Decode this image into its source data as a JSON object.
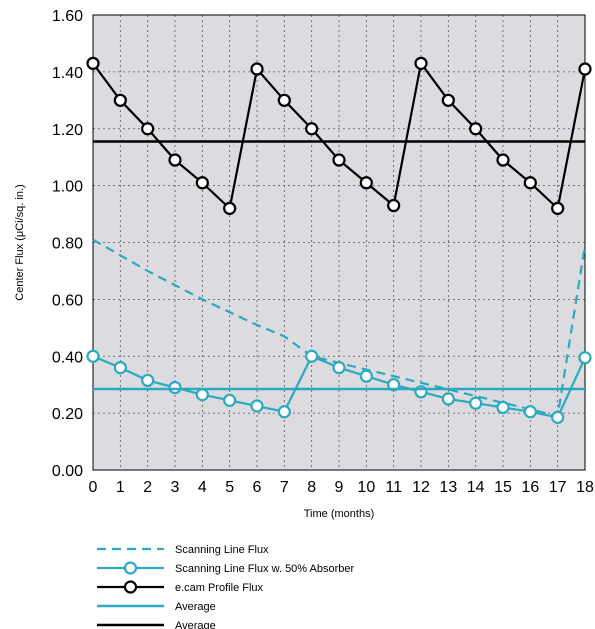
{
  "chart_data": {
    "type": "line",
    "xlabel": "Time (months)",
    "ylabel": "Center Flux (μCi/sq. in.)",
    "xlim": [
      0,
      18
    ],
    "ylim": [
      0,
      1.6
    ],
    "x_ticks": [
      0,
      1,
      2,
      3,
      4,
      5,
      6,
      7,
      8,
      9,
      10,
      11,
      12,
      13,
      14,
      15,
      16,
      17,
      18
    ],
    "x_tick_labels": [
      "0",
      "1",
      "2",
      "3",
      "4",
      "5",
      "6",
      "7",
      "8",
      "9",
      "10",
      "11",
      "12",
      "13",
      "14",
      "15",
      "16",
      "17",
      "18"
    ],
    "y_ticks": [
      0,
      0.2,
      0.4,
      0.6,
      0.8,
      1.0,
      1.2,
      1.4,
      1.6
    ],
    "y_tick_labels": [
      "0.00",
      "0.20",
      "0.40",
      "0.60",
      "0.80",
      "1.00",
      "1.20",
      "1.40",
      "1.60"
    ],
    "grid": true,
    "legend_position": "bottom",
    "plot_background": "#dcdce0",
    "series": [
      {
        "name": "Scanning Line Flux",
        "style": "dashed",
        "color": "#2aa9bf",
        "x": [
          0,
          1,
          2,
          3,
          4,
          5,
          6,
          7,
          8,
          17,
          18
        ],
        "y": [
          0.81,
          0.755,
          0.7,
          0.65,
          0.6,
          0.555,
          0.51,
          0.47,
          0.4,
          0.19,
          0.79
        ]
      },
      {
        "name": "Scanning Line Flux w. 50% Absorber",
        "style": "line-markers",
        "color": "#2aa9bf",
        "x": [
          0,
          1,
          2,
          3,
          4,
          5,
          6,
          7,
          8,
          9,
          10,
          11,
          12,
          13,
          14,
          15,
          16,
          17,
          18
        ],
        "y": [
          0.4,
          0.36,
          0.315,
          0.29,
          0.265,
          0.245,
          0.225,
          0.205,
          0.4,
          0.36,
          0.33,
          0.3,
          0.275,
          0.25,
          0.235,
          0.22,
          0.205,
          0.185,
          0.395
        ]
      },
      {
        "name": "e.cam Profile Flux",
        "style": "line-markers",
        "color": "#000000",
        "x": [
          0,
          1,
          2,
          3,
          4,
          5,
          6,
          7,
          8,
          9,
          10,
          11,
          12,
          13,
          14,
          15,
          16,
          17,
          18
        ],
        "y": [
          1.43,
          1.3,
          1.2,
          1.09,
          1.01,
          0.92,
          1.41,
          1.3,
          1.2,
          1.09,
          1.01,
          0.93,
          1.43,
          1.3,
          1.2,
          1.09,
          1.01,
          0.92,
          1.41
        ]
      },
      {
        "name": "Average",
        "style": "solid",
        "color": "#2aa9bf",
        "x": [
          0,
          18
        ],
        "y": [
          0.285,
          0.285
        ]
      },
      {
        "name": "Average",
        "style": "solid",
        "color": "#000000",
        "x": [
          0,
          18
        ],
        "y": [
          1.155,
          1.155
        ]
      }
    ]
  }
}
